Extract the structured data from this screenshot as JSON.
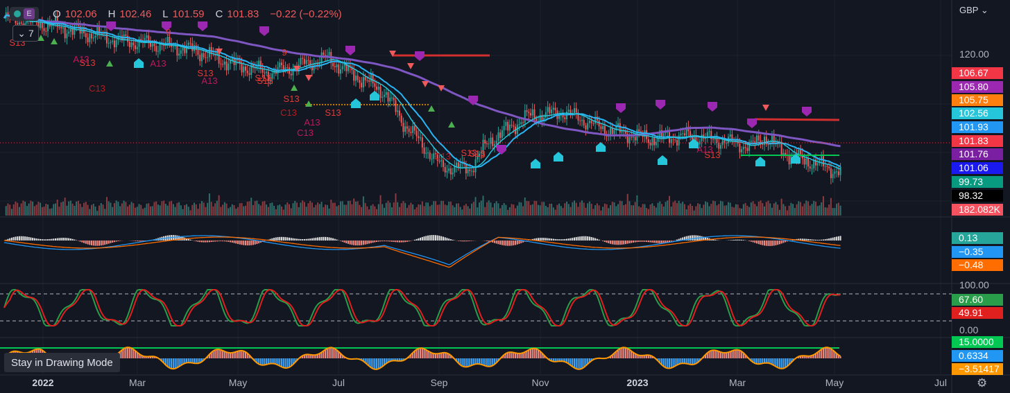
{
  "header": {
    "badge_letter": "E",
    "open_label": "O",
    "open": "102.06",
    "high_label": "H",
    "high": "102.46",
    "low_label": "L",
    "low": "101.59",
    "close_label": "C",
    "close": "101.83",
    "change": "−0.22 (−0.22%)"
  },
  "indicator_toggle": {
    "icon": "chevron-down-icon",
    "count": "7"
  },
  "currency": "GBP",
  "drawing_mode": "Stay in Drawing Mode",
  "price_axis": {
    "ticks": [
      "120.00"
    ]
  },
  "price_tags": [
    {
      "value": "106.67",
      "color": "#f23645"
    },
    {
      "value": "105.80",
      "color": "#9c27b0"
    },
    {
      "value": "105.75",
      "color": "#ff7f0e"
    },
    {
      "value": "102.56",
      "color": "#26c6da"
    },
    {
      "value": "101.93",
      "color": "#2196f3"
    },
    {
      "value": "101.83",
      "color": "#f23645"
    },
    {
      "value": "101.76",
      "color": "#7b1fa2"
    },
    {
      "value": "101.06",
      "color": "#1a1af0"
    },
    {
      "value": "99.73",
      "color": "#089981"
    },
    {
      "value": "98.32",
      "color": "#000000"
    },
    {
      "value": "182.082K",
      "color": "#f7525f"
    }
  ],
  "macd_tags": [
    {
      "value": "0.13",
      "color": "#26a69a"
    },
    {
      "value": "−0.35",
      "color": "#2196f3"
    },
    {
      "value": "−0.48",
      "color": "#ff6d00"
    }
  ],
  "stoch": {
    "ticks": [
      "100.00",
      "0.00"
    ],
    "k": "67.60",
    "d": "49.91",
    "k_color": "#2a9d4a",
    "d_color": "#e01f1f"
  },
  "osc_tags": [
    {
      "value": "15.0000",
      "color": "#00c853"
    },
    {
      "value": "0.6334",
      "color": "#2196f3"
    },
    {
      "value": "−3.51417",
      "color": "#ff9800"
    }
  ],
  "time_axis": [
    "2022",
    "Mar",
    "May",
    "Jul",
    "Sep",
    "Nov",
    "2023",
    "Mar",
    "May",
    "Jul"
  ],
  "colors": {
    "background": "#131722",
    "up": "#26a69a",
    "down": "#f05a5a",
    "ma_slow": "#7e57c2",
    "ma_fast": "#29b6f6",
    "ma_mid": "#26c6da"
  },
  "chart_data": {
    "type": "candlestick",
    "close_series_anchor": [
      [
        0,
        125.5
      ],
      [
        20,
        124.6
      ],
      [
        40,
        123.4
      ],
      [
        60,
        122.1
      ],
      [
        80,
        121.5
      ],
      [
        100,
        120.6
      ],
      [
        120,
        118.5
      ],
      [
        140,
        117.1
      ],
      [
        160,
        118.6
      ],
      [
        170,
        119.4
      ],
      [
        180,
        117.5
      ],
      [
        200,
        114.2
      ],
      [
        210,
        109.5
      ],
      [
        230,
        102.7
      ],
      [
        245,
        102.4
      ],
      [
        255,
        106.6
      ],
      [
        275,
        110.4
      ],
      [
        295,
        111.1
      ],
      [
        315,
        108.6
      ],
      [
        340,
        107.0
      ],
      [
        360,
        107.5
      ],
      [
        378,
        106.7
      ],
      [
        393,
        105.8
      ],
      [
        400,
        107.3
      ],
      [
        405,
        106.1
      ],
      [
        415,
        104.2
      ],
      [
        425,
        103.4
      ],
      [
        440,
        101.9
      ]
    ],
    "bar_labels": [
      "9",
      "S13",
      "A13",
      "C13",
      "9",
      "S13",
      "C13"
    ],
    "last_price": "101.83"
  }
}
